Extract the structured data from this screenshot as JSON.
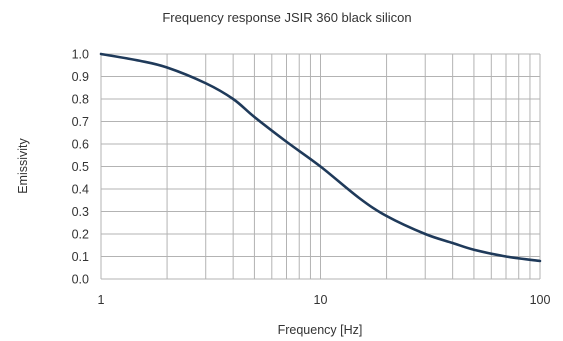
{
  "chart_data": {
    "type": "line",
    "title": "Frequency response JSIR 360 black silicon",
    "xlabel": "Frequency [Hz]",
    "ylabel": "Emissivity",
    "xscale": "log",
    "xlim": [
      1,
      100
    ],
    "ylim": [
      0.0,
      1.0
    ],
    "x_ticks": [
      "1",
      "10",
      "100"
    ],
    "y_ticks": [
      "0.0",
      "0.1",
      "0.2",
      "0.3",
      "0.4",
      "0.5",
      "0.6",
      "0.7",
      "0.8",
      "0.9",
      "1.0"
    ],
    "grid": true,
    "legend": "none",
    "line_color": "#1f3a5a",
    "grid_color": "#b3b3b3",
    "series": [
      {
        "x": [
          1,
          1.5,
          2,
          3,
          4,
          5,
          7,
          10,
          15,
          20,
          30,
          40,
          50,
          70,
          100
        ],
        "y": [
          1.0,
          0.97,
          0.94,
          0.87,
          0.8,
          0.72,
          0.61,
          0.5,
          0.36,
          0.28,
          0.2,
          0.16,
          0.13,
          0.1,
          0.08
        ]
      }
    ]
  }
}
